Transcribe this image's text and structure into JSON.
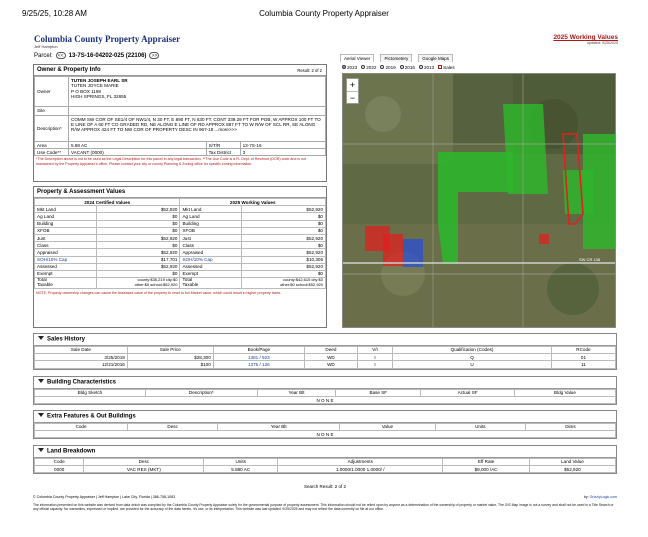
{
  "print_header": {
    "datetime": "9/25/25, 10:28 AM",
    "title": "Columbia County Property Appraiser"
  },
  "site": {
    "title": "Columbia County Property Appraiser",
    "appraiser": "Jeff Hampton",
    "parcel_label": "Parcel:",
    "parcel_number": "13-7S-16-04202-025 (22106)",
    "prev": "<<",
    "next": ">>"
  },
  "working_values": {
    "title": "2025 Working Values",
    "updated": "updated: 9/25/2025"
  },
  "owner": {
    "title": "Owner & Property Info",
    "result": "Result: 2 of 2",
    "owner_label": "Owner",
    "owner_lines": [
      "TUTEN JOSEPH EARL SR",
      "TUTEN JOYCE MARIE",
      "P O BOX 1198",
      "HIGH SPRINGS, FL 32655"
    ],
    "site_label": "Site",
    "site": "",
    "desc_label": "Description*",
    "description": "COMM SW COR OF SE1/4 OF NW1/4, N 30 FT, E 890 FT, N 630 FT, CONT 339.29 FT FOR POB, W APPROX 100 FT TO E LINE OF A 60 FT CO GRADED RD, NE ALONG E LINE OF RD APPROX 887 FT TO W R/W OF SCL RR, SE ALONG R/W APPROX 424 FT TO NW COR OF PROPERTY DESC IN 967-18 ...more>>>",
    "area_label": "Area",
    "area": "5.88 AC",
    "str_label": "S/T/R",
    "str": "13-7S-16",
    "use_label": "Use Code**",
    "use": "VACANT (0000)",
    "tax_label": "Tax District",
    "tax": "3",
    "note": "*The Description above is not to be used as the Legal Description for this parcel in any legal transaction. **The Use Code is a FL Dept. of Revenue (DOR) code and is not maintained by the Property Appraiser's office. Please contact your city or county Planning & Zoning office for specific zoning information."
  },
  "values": {
    "title": "Property & Assessment Values",
    "col_left": "2024 Certified Values",
    "col_right": "2025 Working Values",
    "rows": [
      {
        "l": "Mkt Land",
        "lv": "$52,920",
        "r": "Mkt Land",
        "rv": "$52,920"
      },
      {
        "l": "Ag Land",
        "lv": "$0",
        "r": "Ag Land",
        "rv": "$0"
      },
      {
        "l": "Building",
        "lv": "$0",
        "r": "Building",
        "rv": "$0"
      },
      {
        "l": "XFOB",
        "lv": "$0",
        "r": "XFOB",
        "rv": "$0"
      },
      {
        "l": "Just",
        "lv": "$52,920",
        "r": "Just",
        "rv": "$52,920"
      },
      {
        "l": "Class",
        "lv": "$0",
        "r": "Class",
        "rv": "$0"
      },
      {
        "l": "Appraised",
        "lv": "$52,920",
        "r": "Appraised",
        "rv": "$52,920"
      },
      {
        "l": "SOH/10% Cap",
        "lv": "$17,701",
        "r": "SOH/10% Cap",
        "rv": "$10,305"
      },
      {
        "l": "Assessed",
        "lv": "$52,920",
        "r": "Assessed",
        "rv": "$52,920"
      },
      {
        "l": "Exempt",
        "lv": "$0",
        "r": "Exempt",
        "rv": "$0"
      }
    ],
    "total_label": "Total",
    "taxable_label": "Taxable",
    "left_total_1": "county:$35,219 city:$0",
    "left_total_2": "other:$0 school:$52,920",
    "right_total_1": "county:$42,615 city:$0",
    "right_total_2": "other:$0 school:$52,920",
    "note": "NOTE: Property ownership changes can cause the Assessed value of the property to reset to full Market value, which could result in higher property taxes."
  },
  "map": {
    "tabs": [
      "Aerial Viewer",
      "Pictometery",
      "Google Maps"
    ],
    "years": [
      "2023",
      "2022",
      "2019",
      "2016",
      "2013"
    ],
    "sales_label": "Sales",
    "zoom_in": "+",
    "zoom_out": "−",
    "road_label": "SW CR 138"
  },
  "sales": {
    "title": "Sales History",
    "headers": [
      "Sale Date",
      "Sale Price",
      "Book/Page",
      "Deed",
      "V/I",
      "Qualification (Codes)",
      "RCode"
    ],
    "rows": [
      [
        "3/25/2019",
        "$28,300",
        "1381 / 923",
        "WD",
        "I",
        "Q",
        "01"
      ],
      [
        "12/21/2016",
        "$100",
        "1375 / 126",
        "WD",
        "I",
        "U",
        "11"
      ]
    ]
  },
  "building": {
    "title": "Building Characteristics",
    "headers": [
      "Bldg Sketch",
      "Description*",
      "Year Blt",
      "Base SF",
      "Actual SF",
      "Bldg Value"
    ],
    "empty": "N O N E"
  },
  "extra": {
    "title": "Extra Features & Out Buildings",
    "headers": [
      "Code",
      "Desc",
      "Year Blt",
      "Value",
      "Units",
      "Dims"
    ],
    "empty": "N O N E"
  },
  "land": {
    "title": "Land Breakdown",
    "headers": [
      "Code",
      "Desc",
      "Units",
      "Adjustments",
      "Eff Rate",
      "Land Value"
    ],
    "rows": [
      [
        "0000",
        "VAC RES (MKT)",
        "5.880 AC",
        "1.0000/1.0000 1.0000/ /",
        "$9,000 /AC",
        "$52,920"
      ]
    ]
  },
  "footer": {
    "search_result": "Search Result: 2 of 2",
    "credit": "© Columbia County Property Appraiser | Jeff Hampton | Lake City, Florida | 386-758-1083",
    "by": "by: ",
    "vendor": "GrizzlyLogic.com",
    "disclaimer": "The information presented on this website was derived from data which was compiled by the Columbia County Property Appraiser solely for the governmental purpose of property assessment. This information should not be relied upon by anyone as a determination of the ownership of property or market value. The GIS Map image is not a survey and shall not be used in a Title Search or any official capacity. No warranties, expressed or implied, are provided for the accuracy of the data herein, it's use, or its interpretation. This website was last updated: 9/25/2025 and may not reflect the data currently on file at our office."
  }
}
